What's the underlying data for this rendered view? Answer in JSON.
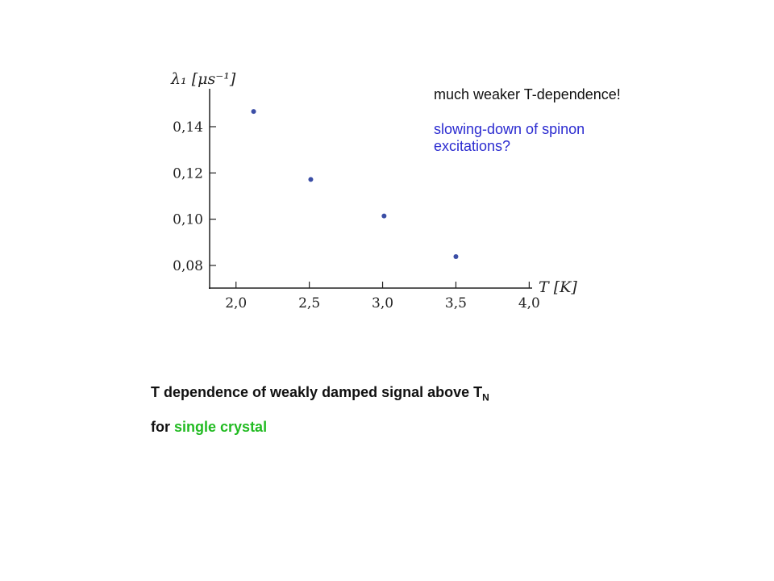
{
  "chart_data": {
    "type": "scatter",
    "y_label": "λ₁ [μs⁻¹]",
    "x_label": "T [K]",
    "x": [
      2.12,
      2.51,
      3.01,
      3.5
    ],
    "values": [
      0.1466,
      0.1172,
      0.1014,
      0.0838
    ],
    "color": "#3b4ea6",
    "xlim": [
      1.82,
      4.02
    ],
    "xticks": [
      {
        "value": 2.0,
        "label": "2,0"
      },
      {
        "value": 2.5,
        "label": "2,5"
      },
      {
        "value": 3.0,
        "label": "3,0"
      },
      {
        "value": 3.5,
        "label": "3,5"
      },
      {
        "value": 4.0,
        "label": "4,0"
      }
    ],
    "ylim": [
      0.0702,
      0.1564
    ],
    "yticks": [
      {
        "value": 0.08,
        "label": "0,08"
      },
      {
        "value": 0.1,
        "label": "0,10"
      },
      {
        "value": 0.12,
        "label": "0,12"
      },
      {
        "value": 0.14,
        "label": "0,14"
      }
    ],
    "annotations": [
      "much weaker T-dependence!",
      "slowing-down of spinon excitations?"
    ]
  },
  "caption": {
    "line1": "T dependence of weakly damped signal above T",
    "line1_sub": "N",
    "line2_prefix": "for",
    "line2_highlight": "single crystal"
  }
}
